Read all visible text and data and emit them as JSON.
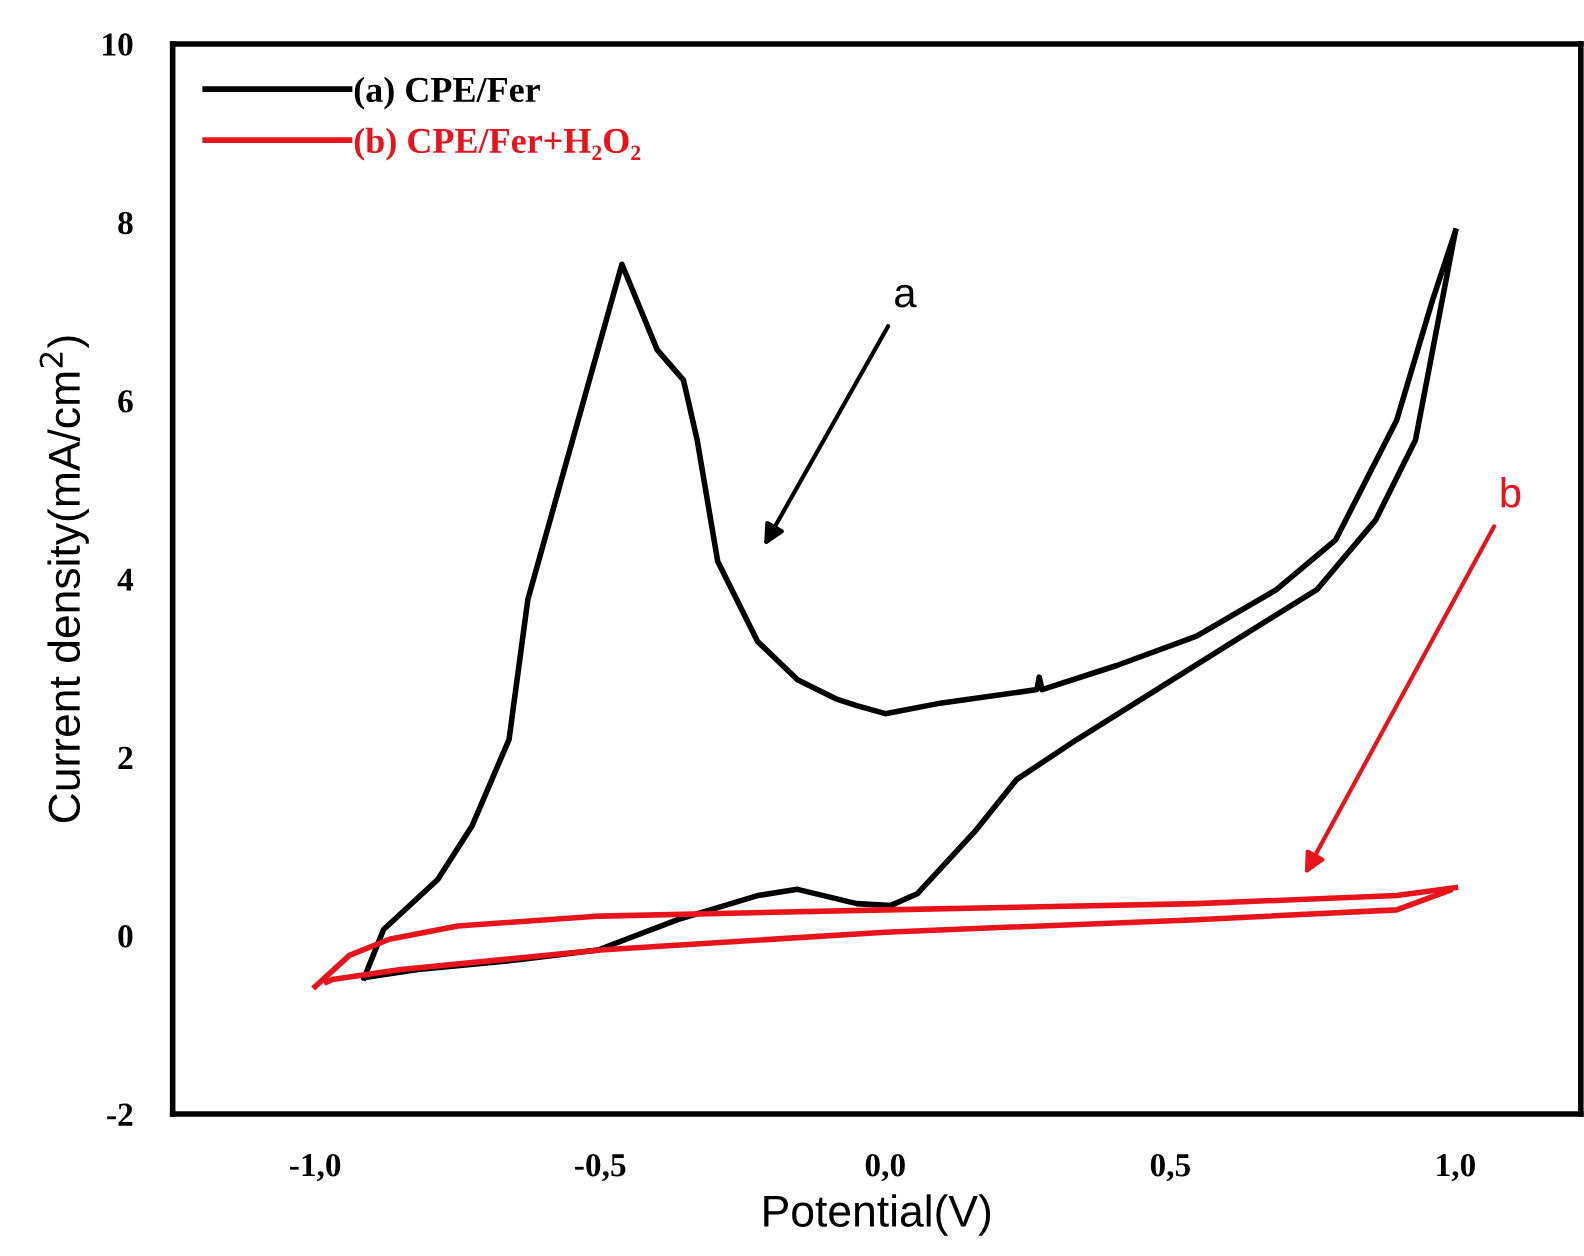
{
  "chart_data": {
    "type": "line",
    "xlabel": "Potential(V)",
    "ylabel": "Current density(mA/cm$^{2}$)",
    "xlim": [
      -1.25,
      1.22
    ],
    "ylim": [
      -2,
      10
    ],
    "xticks": [
      {
        "value": -1.0,
        "label": "-1,0"
      },
      {
        "value": -0.5,
        "label": "-0,5"
      },
      {
        "value": 0.0,
        "label": "0,0"
      },
      {
        "value": 0.5,
        "label": "0,5"
      },
      {
        "value": 1.0,
        "label": "1,0"
      }
    ],
    "yticks": [
      -2,
      0,
      2,
      4,
      6,
      8,
      10
    ],
    "grid": false,
    "legend": "top left",
    "marker": "none",
    "line_style": "solid",
    "series": [
      {
        "name": "(a) CPE/Fer",
        "color": "#000000",
        "x": [
          -0.914,
          -0.88,
          -0.785,
          -0.725,
          -0.66,
          -0.627,
          -0.462,
          -0.4,
          -0.354,
          -0.33,
          -0.294,
          -0.224,
          -0.154,
          -0.084,
          -0.05,
          0.0,
          0.09,
          0.266,
          0.27,
          0.275,
          0.406,
          0.546,
          0.686,
          0.79,
          0.897,
          0.96,
          1.0
        ],
        "values": [
          -0.47,
          0.07,
          0.63,
          1.23,
          2.2,
          3.77,
          7.53,
          6.57,
          6.23,
          5.56,
          4.2,
          3.3,
          2.87,
          2.65,
          2.58,
          2.49,
          2.6,
          2.76,
          2.9,
          2.76,
          3.03,
          3.36,
          3.88,
          4.44,
          5.78,
          7.13,
          7.9
        ]
      },
      {
        "color": "#000000",
        "x": [
          -0.914,
          -0.82,
          -0.644,
          -0.504,
          -0.364,
          -0.224,
          -0.154,
          -0.05,
          0.01,
          0.056,
          0.16,
          0.23,
          0.336,
          0.476,
          0.616,
          0.757,
          0.86,
          0.93,
          0.97,
          1.0
        ],
        "values": [
          -0.47,
          -0.38,
          -0.27,
          -0.16,
          0.18,
          0.45,
          0.52,
          0.36,
          0.34,
          0.47,
          1.19,
          1.75,
          2.2,
          2.76,
          3.32,
          3.88,
          4.66,
          5.56,
          6.9,
          7.9
        ]
      },
      {
        "name": "(b) CPE/Fer+H₂O₂",
        "color": "#e8141c",
        "x": [
          -1.0,
          -0.94,
          -0.87,
          -0.75,
          -0.5,
          0.0,
          0.546,
          0.897,
          1.0
        ],
        "values": [
          -0.57,
          -0.22,
          -0.04,
          0.11,
          0.22,
          0.29,
          0.36,
          0.45,
          0.54
        ]
      },
      {
        "color": "#e8141c",
        "x": [
          -0.98,
          -0.97,
          -0.85,
          -0.5,
          0.0,
          0.546,
          0.897,
          0.99
        ],
        "values": [
          -0.52,
          -0.49,
          -0.38,
          -0.16,
          0.04,
          0.18,
          0.29,
          0.51
        ]
      }
    ],
    "annotations": [
      "a",
      "b"
    ]
  }
}
